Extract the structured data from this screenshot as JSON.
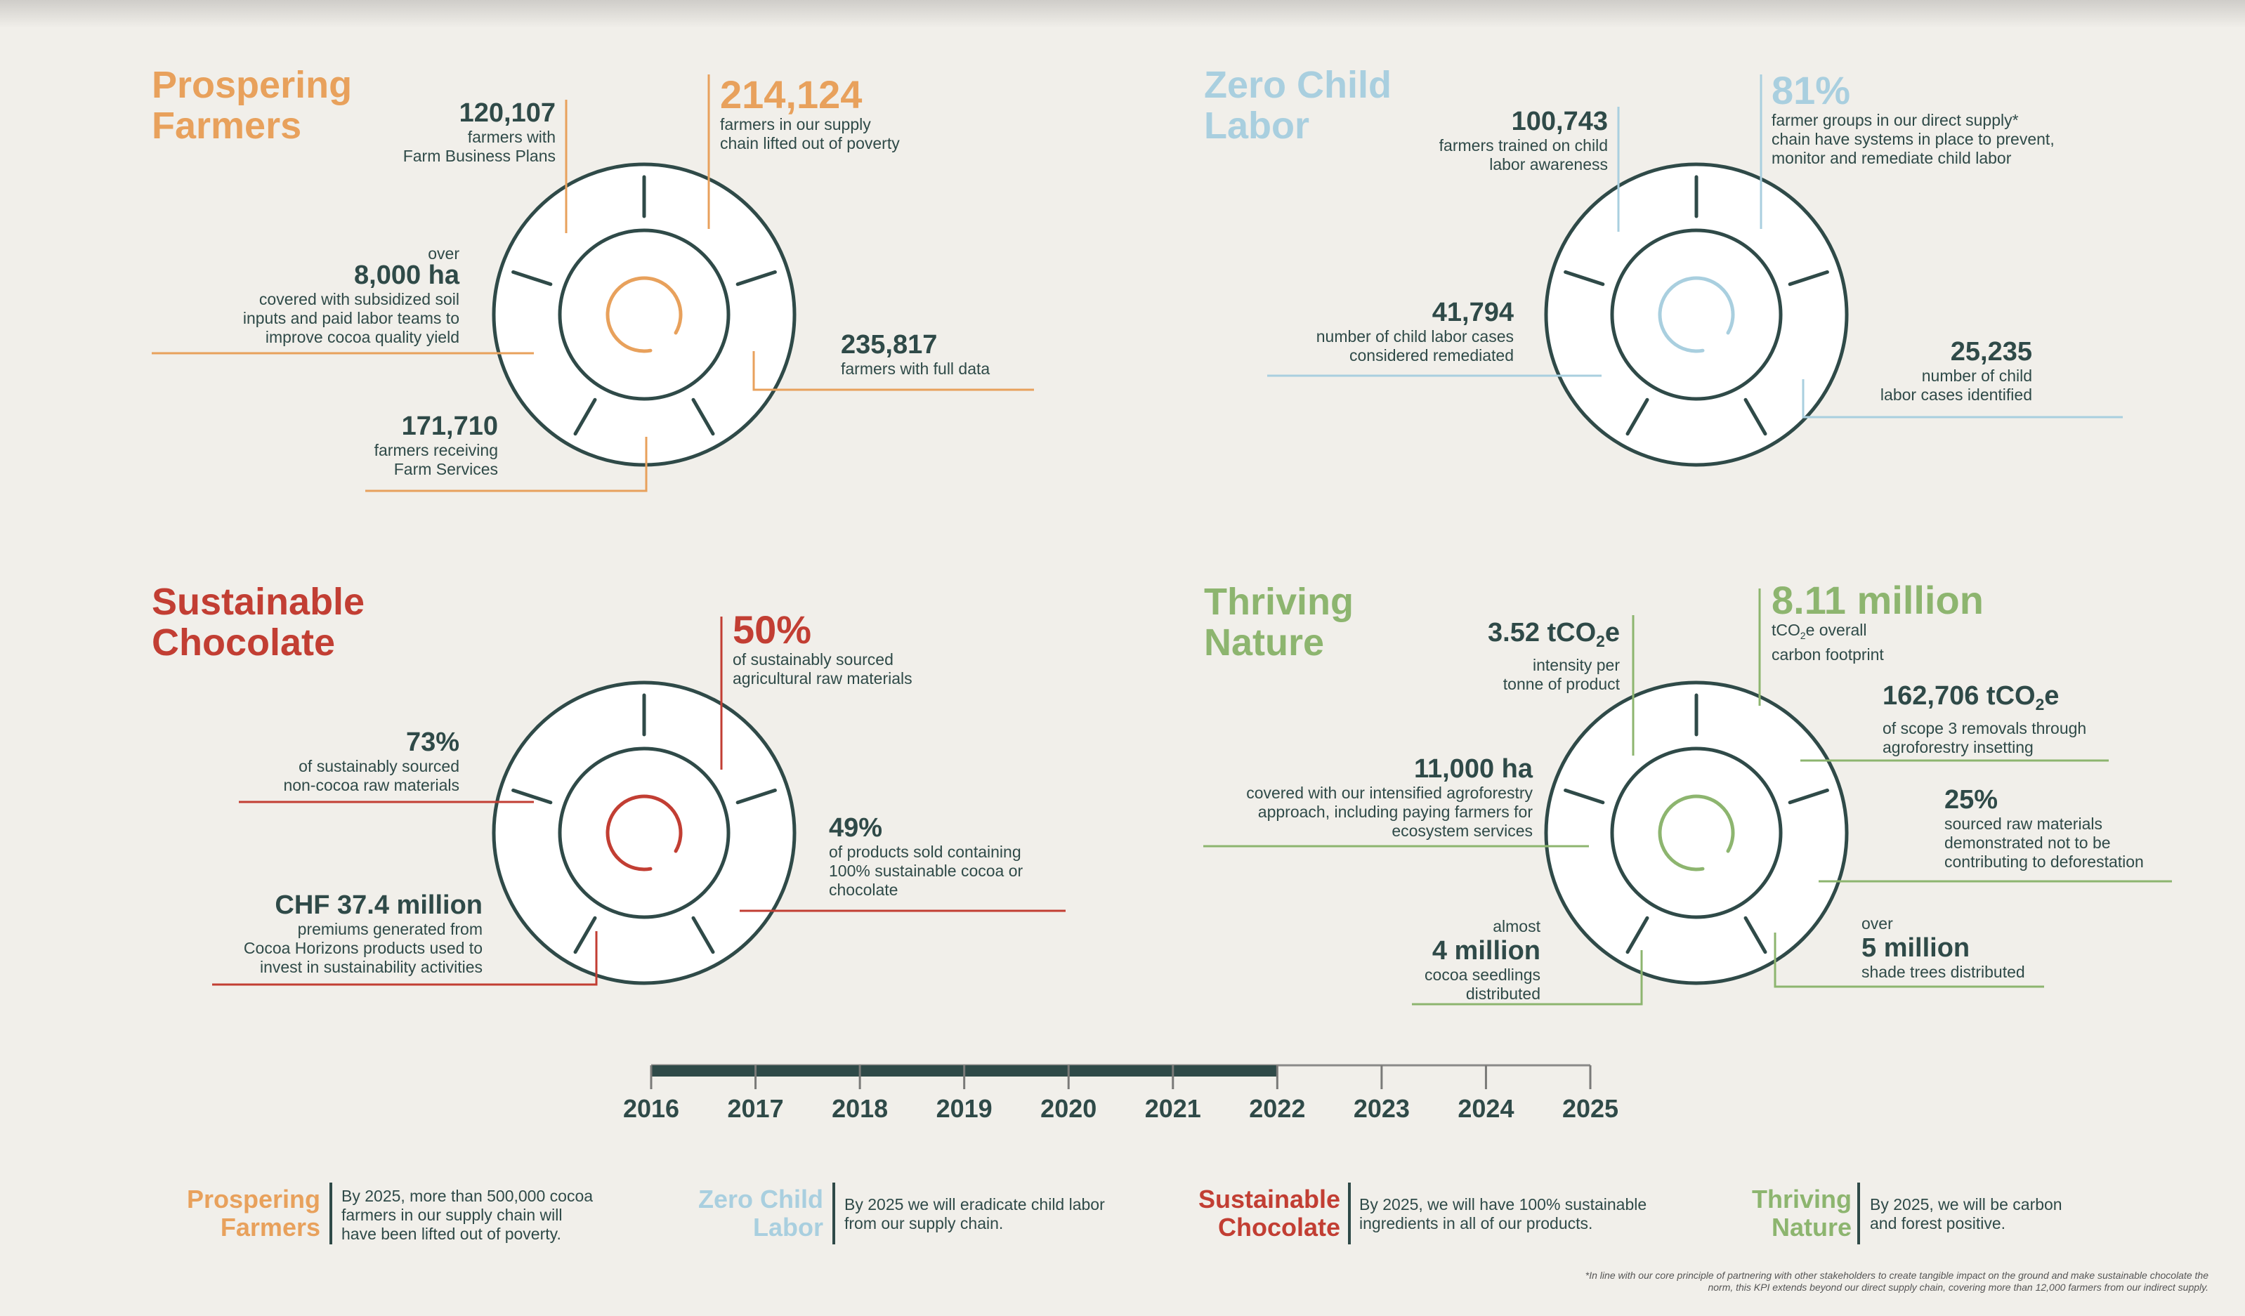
{
  "colors": {
    "prospering": "#e8a15c",
    "child_labor": "#a9cfdf",
    "chocolate": "#c23e33",
    "nature": "#8db56f",
    "ink": "#2f4a48",
    "background": "#f1efea"
  },
  "quadrants": {
    "prospering": {
      "title_line1": "Prospering",
      "title_line2": "Farmers",
      "hero": {
        "value": "214,124",
        "line1": "farmers in our supply",
        "line2": "chain lifted out of poverty"
      },
      "kpi1": {
        "value": "120,107",
        "line1": "farmers with",
        "line2": "Farm Business Plans"
      },
      "kpi2": {
        "prefix": "over",
        "value": "8,000 ha",
        "line1": "covered with subsidized soil",
        "line2": "inputs and paid labor teams to",
        "line3": "improve cocoa quality yield"
      },
      "kpi3": {
        "value": "235,817",
        "line1": "farmers with full data"
      },
      "kpi4": {
        "value": "171,710",
        "line1": "farmers receiving",
        "line2": "Farm Services"
      }
    },
    "child_labor": {
      "title_line1": "Zero Child",
      "title_line2": "Labor",
      "hero": {
        "value": "81%",
        "line1": "farmer groups in our direct supply*",
        "line2": "chain have systems in place to prevent,",
        "line3": "monitor and remediate child labor"
      },
      "kpi1": {
        "value": "100,743",
        "line1": "farmers trained on child",
        "line2": "labor awareness"
      },
      "kpi2": {
        "value": "41,794",
        "line1": "number of child labor cases",
        "line2": "considered remediated"
      },
      "kpi3": {
        "value": "25,235",
        "line1": "number of child",
        "line2": "labor cases identified"
      }
    },
    "chocolate": {
      "title_line1": "Sustainable",
      "title_line2": "Chocolate",
      "hero": {
        "value": "50%",
        "line1": "of sustainably sourced",
        "line2": "agricultural raw materials"
      },
      "kpi1": {
        "value": "73%",
        "line1": "of sustainably sourced",
        "line2": "non-cocoa raw materials"
      },
      "kpi2": {
        "value": "49%",
        "line1": "of products sold containing",
        "line2": "100% sustainable cocoa or",
        "line3": "chocolate"
      },
      "kpi3": {
        "value": "CHF 37.4 million",
        "line1": "premiums generated from",
        "line2": "Cocoa Horizons products used to",
        "line3": "invest in sustainability activities"
      }
    },
    "nature": {
      "title_line1": "Thriving",
      "title_line2": "Nature",
      "hero": {
        "value": "8.11 million",
        "unit_a": "tCO",
        "unit_sub": "2",
        "unit_b": "e overall",
        "line2": "carbon footprint"
      },
      "kpi1": {
        "value_a": "3.52 tCO",
        "value_sub": "2",
        "value_b": "e",
        "line1": "intensity per",
        "line2": "tonne of product"
      },
      "kpi2": {
        "value_a": "162,706 tCO",
        "value_sub": "2",
        "value_b": "e",
        "line1": "of scope 3 removals through",
        "line2": "agroforestry insetting"
      },
      "kpi3": {
        "value": "11,000 ha",
        "line1": "covered with our intensified agroforestry",
        "line2": "approach, including paying farmers for",
        "line3": "ecosystem services"
      },
      "kpi4": {
        "value": "25%",
        "line1": "sourced raw materials",
        "line2": "demonstrated not to be",
        "line3": "contributing to deforestation"
      },
      "kpi5": {
        "prefix": "almost",
        "value": "4 million",
        "line1": "cocoa seedlings",
        "line2": "distributed"
      },
      "kpi6": {
        "prefix": "over",
        "value": "5 million",
        "line1": "shade trees distributed"
      }
    }
  },
  "timeline": {
    "years": [
      "2016",
      "2017",
      "2018",
      "2019",
      "2020",
      "2021",
      "2022",
      "2023",
      "2024",
      "2025"
    ],
    "progress_through_year": "2022",
    "progress_fraction": 0.667
  },
  "goals": [
    {
      "title_line1": "Prospering",
      "title_line2": "Farmers",
      "line1": "By 2025, more than 500,000 cocoa",
      "line2": "farmers in our supply chain will",
      "line3": "have been lifted out of poverty."
    },
    {
      "title_line1": "Zero Child",
      "title_line2": "Labor",
      "line1": "By 2025 we will eradicate child labor",
      "line2": "from our supply chain.",
      "line3": ""
    },
    {
      "title_line1": "Sustainable",
      "title_line2": "Chocolate",
      "line1": "By 2025, we will have 100% sustainable",
      "line2": "ingredients in all of our products.",
      "line3": ""
    },
    {
      "title_line1": "Thriving",
      "title_line2": "Nature",
      "line1": "By 2025, we will be carbon",
      "line2": "and forest positive.",
      "line3": ""
    }
  ],
  "footnote": {
    "line1": "*In line with our core principle of partnering with other stakeholders to create tangible impact on the ground and make sustainable chocolate the",
    "line2": "norm, this KPI extends beyond our direct supply chain, covering more than 12,000 farmers from our indirect supply."
  }
}
